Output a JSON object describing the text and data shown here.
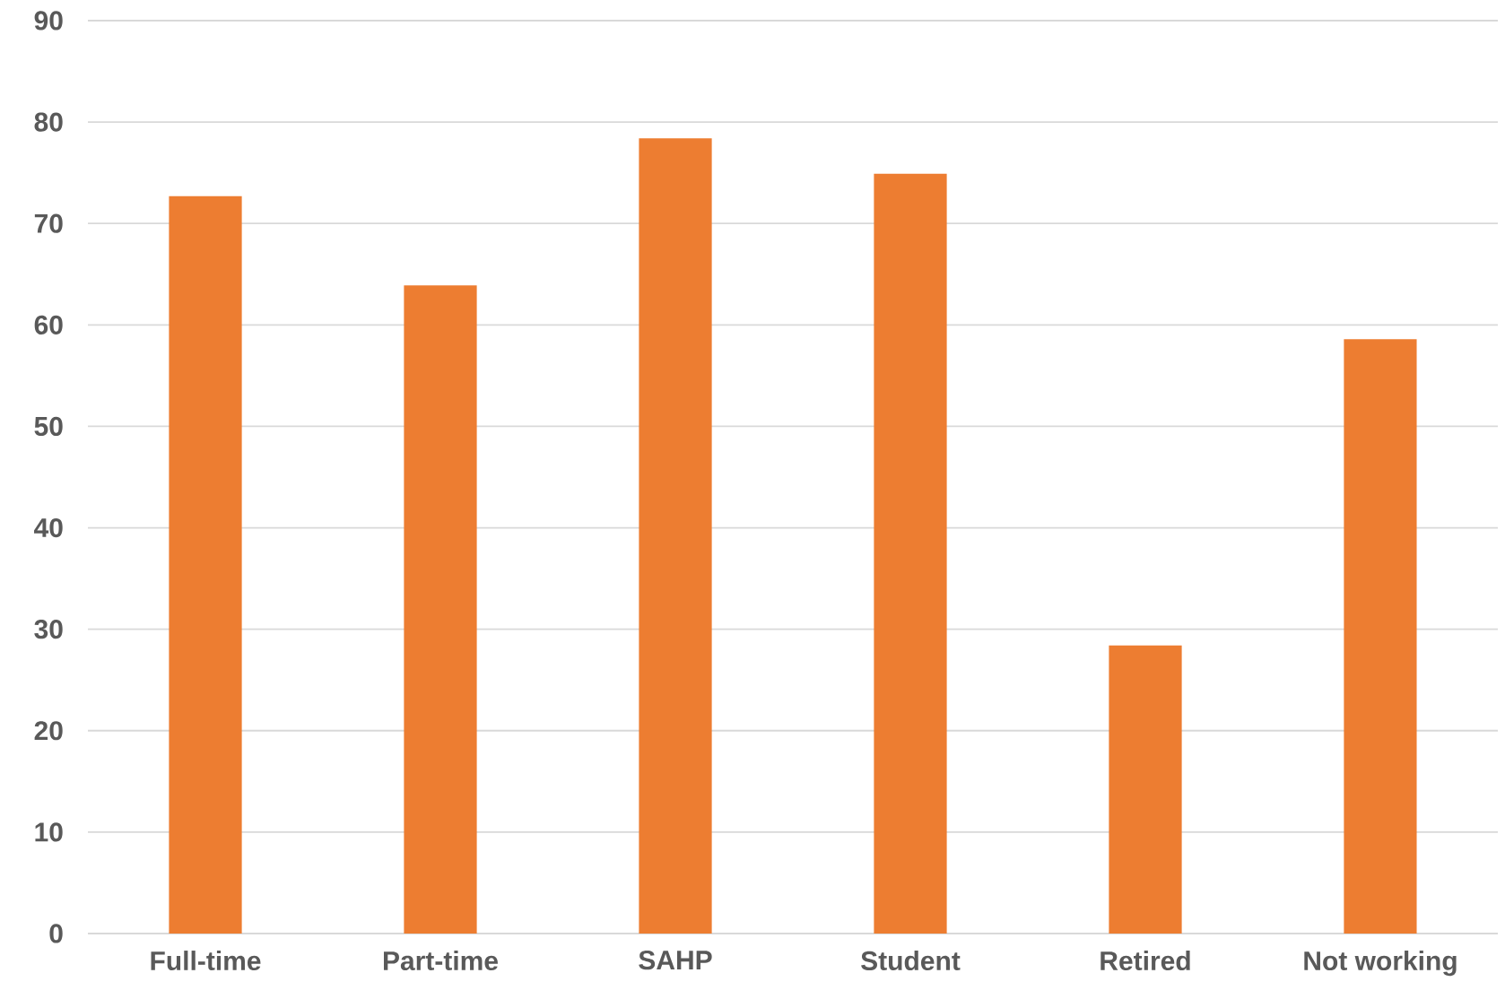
{
  "chart_data": {
    "type": "bar",
    "categories": [
      "Full-time",
      "Part-time",
      "SAHP",
      "Student",
      "Retired",
      "Not working"
    ],
    "values": [
      72.7,
      63.9,
      78.4,
      74.9,
      28.4,
      58.6
    ],
    "color": "#ed7d31",
    "ylim": [
      0,
      90
    ],
    "yticks": [
      0,
      10,
      20,
      30,
      40,
      50,
      60,
      70,
      80,
      90
    ],
    "grid": "y"
  }
}
